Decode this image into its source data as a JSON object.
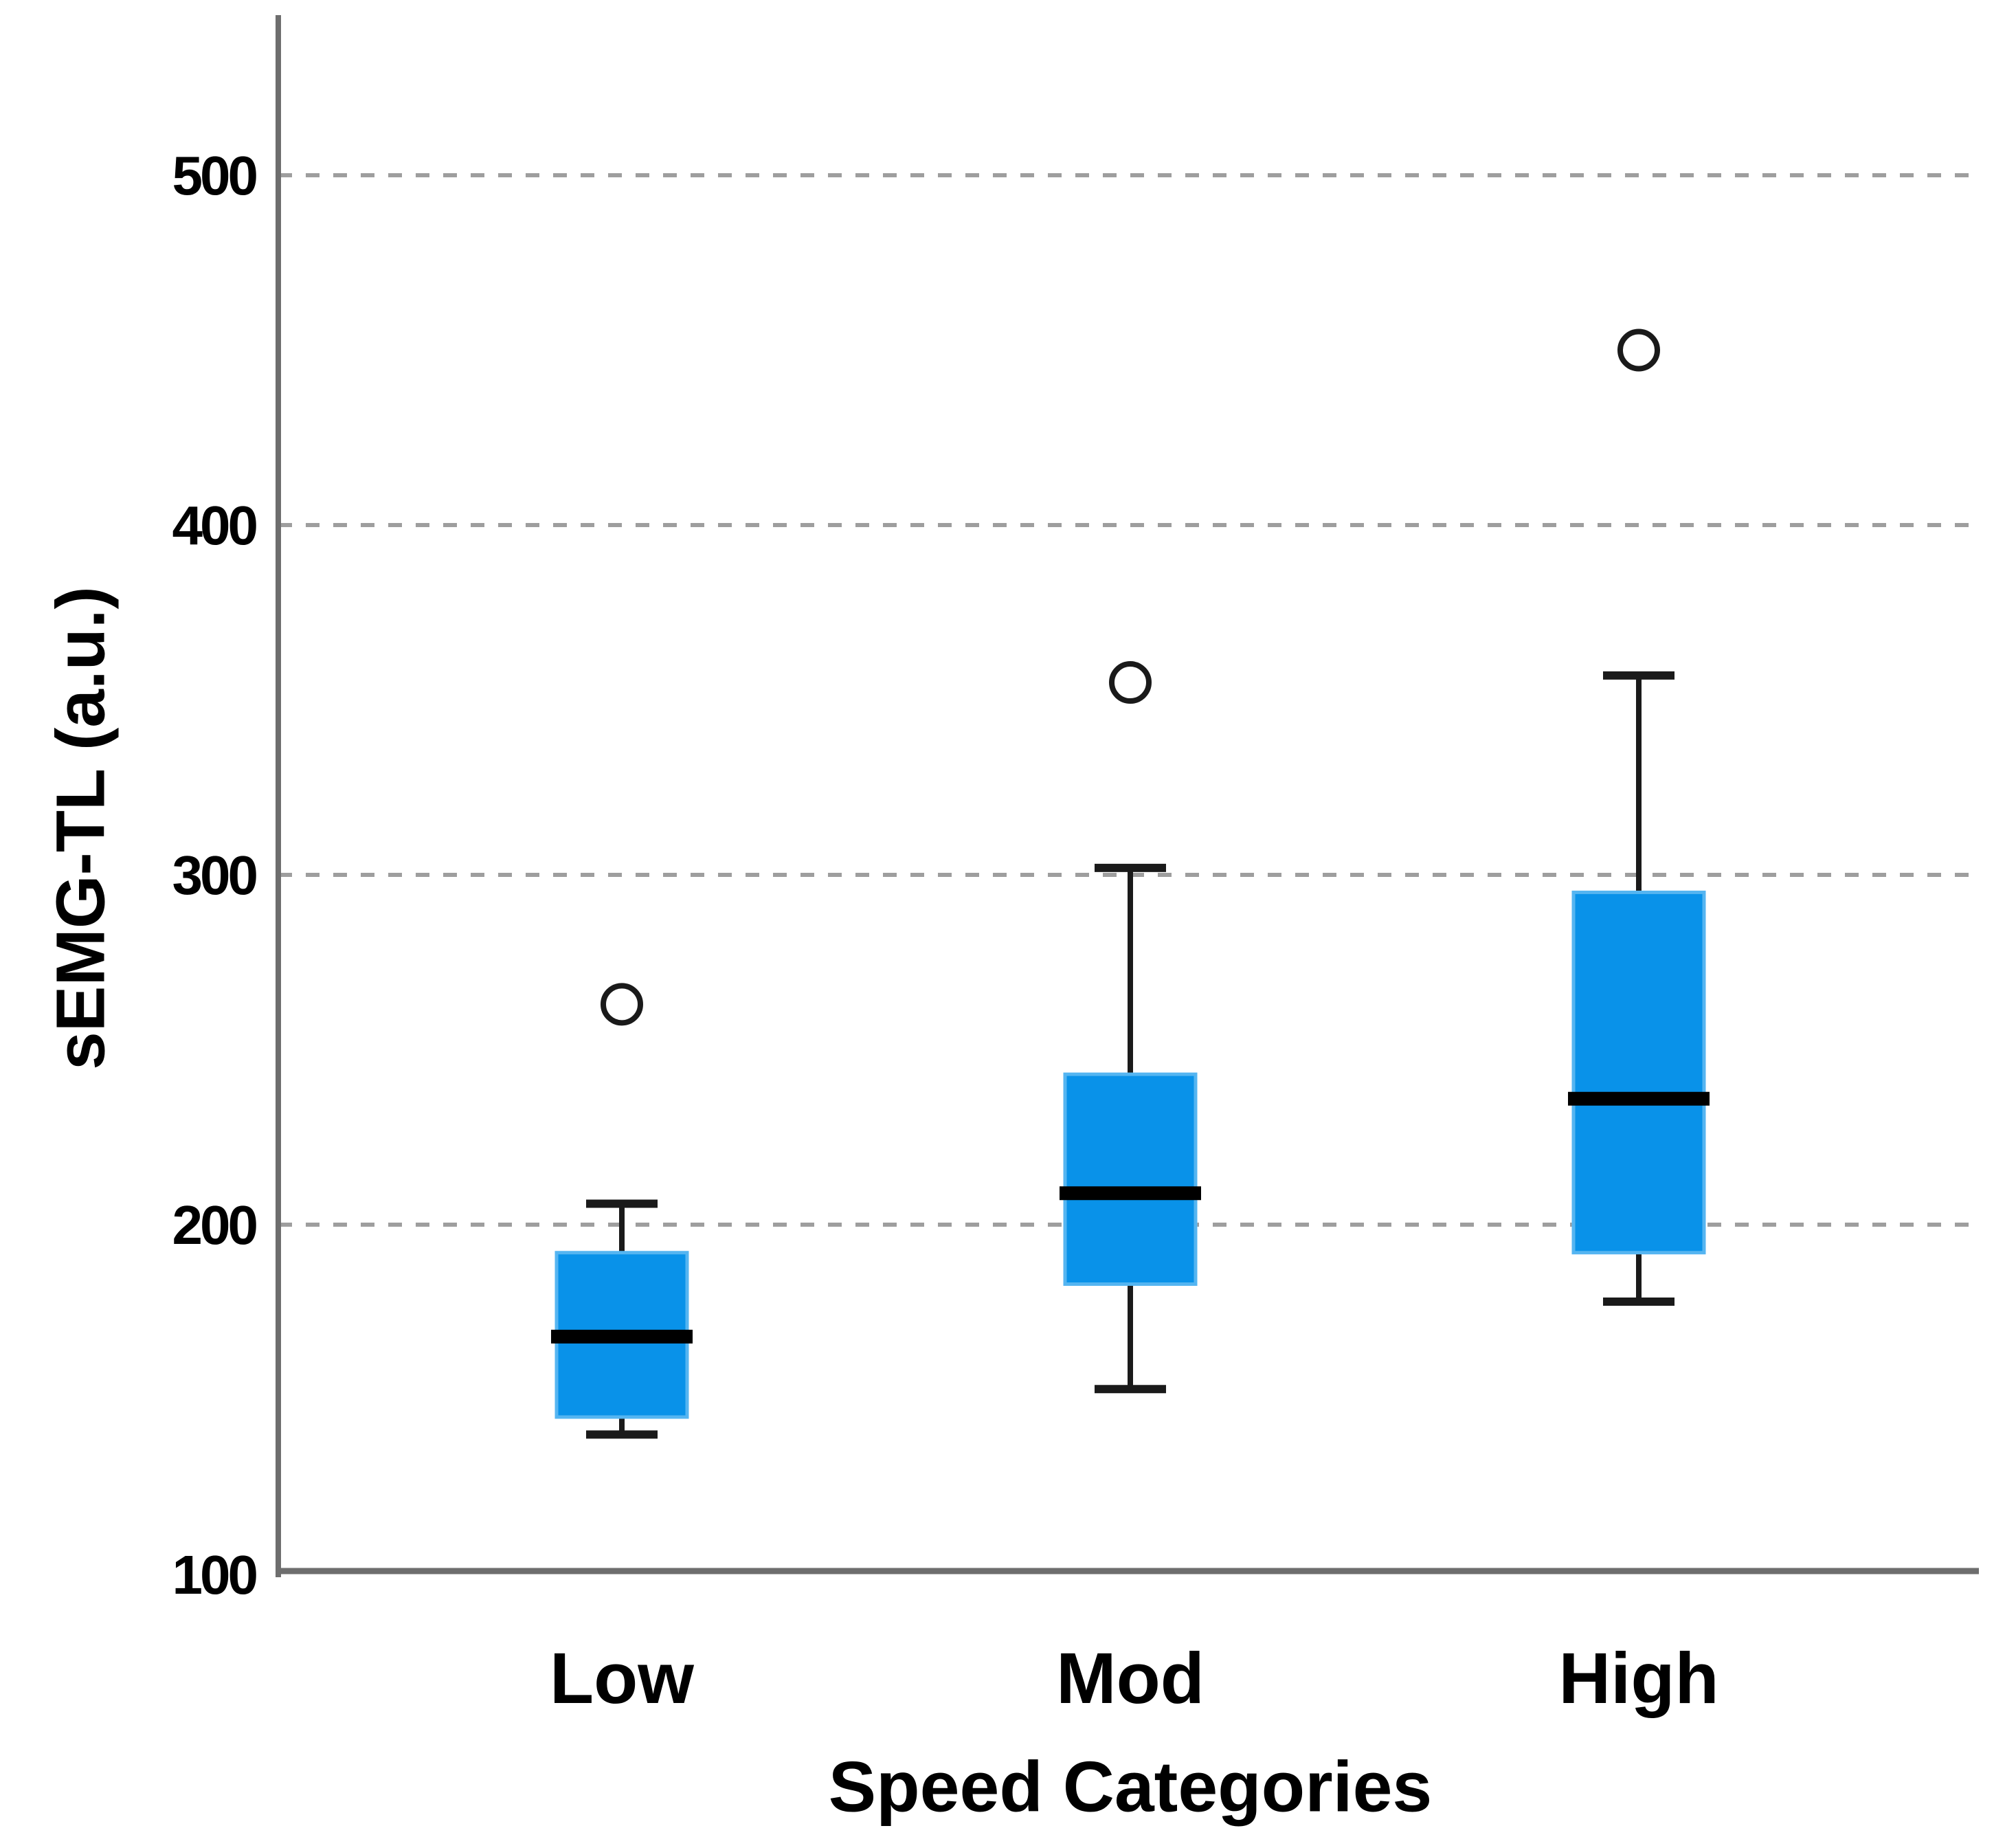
{
  "figure": {
    "background": "#FFFFFF"
  },
  "chart_data": {
    "type": "box",
    "title": "",
    "xlabel": "Speed Categories",
    "ylabel": "sEMG-TL (a.u.)",
    "categories": [
      "Low",
      "Mod",
      "High"
    ],
    "yticks": [
      100,
      200,
      300,
      400,
      500
    ],
    "ylim": [
      100,
      546
    ],
    "grid": {
      "horizontal_dashed_at": [
        200,
        300,
        400,
        500
      ]
    },
    "legend": null,
    "series": [
      {
        "name": "Low",
        "whisker_low": 140,
        "q1": 145,
        "median": 168,
        "q3": 192,
        "whisker_high": 206,
        "outliers": [
          263
        ]
      },
      {
        "name": "Mod",
        "whisker_low": 153,
        "q1": 183,
        "median": 209,
        "q3": 243,
        "whisker_high": 302,
        "outliers": [
          355
        ]
      },
      {
        "name": "High",
        "whisker_low": 178,
        "q1": 192,
        "median": 236,
        "q3": 295,
        "whisker_high": 357,
        "outliers": [
          450
        ]
      }
    ],
    "colors": {
      "box_fill": "#0992E9",
      "box_edge": "#55B5F1",
      "median": "#000000",
      "whisker": "#1A1A1A",
      "outlier_stroke": "#1A1A1A",
      "gridline": "#9E9E9E",
      "axis": "#6E6E6E",
      "text": "#000000"
    }
  }
}
